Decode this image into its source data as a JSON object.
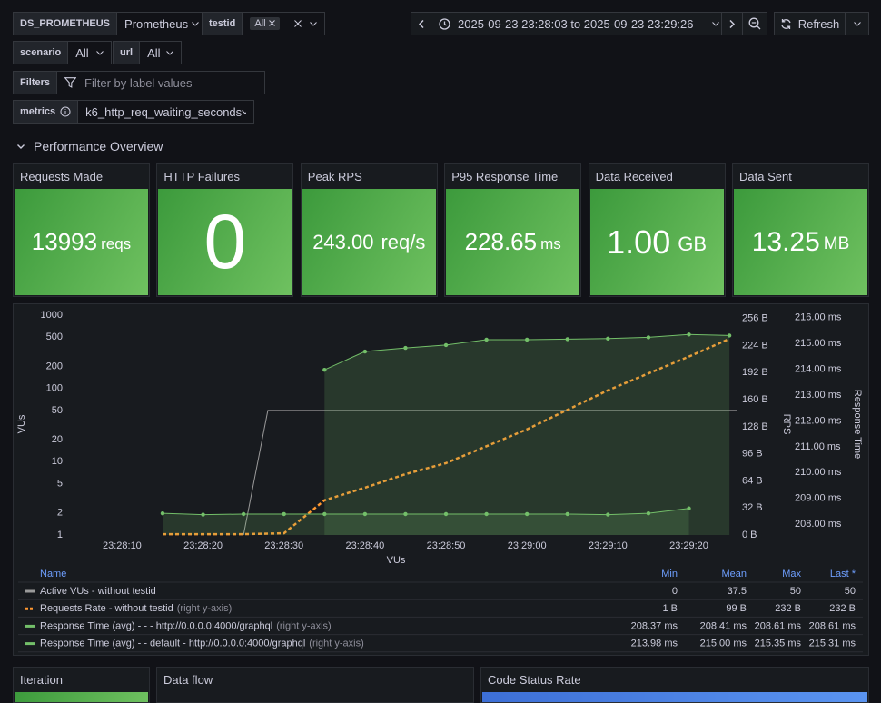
{
  "variables": [
    {
      "label": "DS_PROMETHEUS",
      "value": "Prometheus"
    },
    {
      "label": "testid",
      "value": "All"
    },
    {
      "label": "scenario",
      "value": "All"
    },
    {
      "label": "url",
      "value": "All"
    },
    {
      "label": "Filters",
      "placeholder": "Filter by label values"
    },
    {
      "label": "metrics",
      "value": "k6_http_req_waiting_seconds"
    }
  ],
  "time_range": "2025-09-23 23:28:03 to 2025-09-23 23:29:26",
  "refresh": "Refresh",
  "row_title": "Performance Overview",
  "stats": [
    {
      "title": "Requests Made",
      "value": "13993",
      "unit": "reqs"
    },
    {
      "title": "HTTP Failures",
      "value": "0"
    },
    {
      "title": "Peak RPS",
      "value": "243.00",
      "unit": "req/s"
    },
    {
      "title": "P95 Response Time",
      "value": "228.65",
      "unit": "ms"
    },
    {
      "title": "Data Received",
      "value": "1.00",
      "unit": "GB"
    },
    {
      "title": "Data Sent",
      "value": "13.25",
      "unit": "MB"
    }
  ],
  "chart_data": {
    "type": "line",
    "xlabel": "VUs",
    "ylabel": "VUs",
    "y2label": "RPS",
    "y3label": "Response Time",
    "xlim": [
      "23:28:03",
      "23:29:26"
    ],
    "xticks": [
      "23:28:10",
      "23:28:20",
      "23:28:30",
      "23:28:40",
      "23:28:50",
      "23:29:00",
      "23:29:10",
      "23:29:20"
    ],
    "ylog": true,
    "ylim": [
      1,
      1000
    ],
    "yticks": [
      1,
      2,
      5,
      10,
      20,
      50,
      100,
      200,
      500,
      1000
    ],
    "y2lim": [
      0,
      260
    ],
    "y2ticks": [
      {
        "value": 0,
        "label": "0 B"
      },
      {
        "value": 32,
        "label": "32 B"
      },
      {
        "value": 64,
        "label": "64 B"
      },
      {
        "value": 96,
        "label": "96 B"
      },
      {
        "value": 128,
        "label": "128 B"
      },
      {
        "value": 160,
        "label": "160 B"
      },
      {
        "value": 192,
        "label": "192 B"
      },
      {
        "value": 224,
        "label": "224 B"
      },
      {
        "value": 256,
        "label": "256 B"
      }
    ],
    "y3lim": [
      207.58,
      216.1
    ],
    "y3ticks": [
      {
        "value": 208,
        "label": "208.00 ms"
      },
      {
        "value": 209,
        "label": "209.00 ms"
      },
      {
        "value": 210,
        "label": "210.00 ms"
      },
      {
        "value": 211,
        "label": "211.00 ms"
      },
      {
        "value": 212,
        "label": "212.00 ms"
      },
      {
        "value": 213,
        "label": "213.00 ms"
      },
      {
        "value": 214,
        "label": "214.00 ms"
      },
      {
        "value": 215,
        "label": "215.00 ms"
      },
      {
        "value": 216,
        "label": "216.00 ms"
      }
    ],
    "legend_header": [
      "Name",
      "Min",
      "Mean",
      "Max",
      "Last *"
    ],
    "series": [
      {
        "name": "Active VUs - without testid",
        "color": "#9a9a9a",
        "axis": "y",
        "x": [
          "23:28:25",
          "23:28:28",
          "23:29:26"
        ],
        "values": [
          1,
          50,
          50
        ],
        "min": "0",
        "mean": "37.5",
        "max": "50",
        "last": "50"
      },
      {
        "name": "Requests Rate - without testid",
        "note": "(right y-axis)",
        "color": "#ff9830",
        "axis": "y2",
        "dashed": true,
        "x": [
          "23:28:15",
          "23:28:20",
          "23:28:25",
          "23:28:30",
          "23:28:35",
          "23:28:40",
          "23:28:45",
          "23:28:50",
          "23:28:55",
          "23:29:00",
          "23:29:05",
          "23:29:10",
          "23:29:15",
          "23:29:20",
          "23:29:25"
        ],
        "values": [
          1,
          1,
          1,
          2,
          41,
          56,
          72,
          85,
          105,
          125,
          148,
          171,
          191,
          211,
          232
        ],
        "min": "1 B",
        "mean": "99 B",
        "max": "232 B",
        "last": "232 B"
      },
      {
        "name": "Response Time (avg) - - - http://0.0.0.0:4000/graphql",
        "note": "(right y-axis)",
        "color": "#73bf69",
        "axis": "y3",
        "points": true,
        "fill": true,
        "x": [
          "23:28:15",
          "23:28:20",
          "23:28:25",
          "23:28:30",
          "23:28:35",
          "23:28:40",
          "23:28:45",
          "23:28:50",
          "23:28:55",
          "23:29:00",
          "23:29:05",
          "23:29:10",
          "23:29:15",
          "23:29:20"
        ],
        "values": [
          208.42,
          208.37,
          208.39,
          208.39,
          208.39,
          208.39,
          208.39,
          208.39,
          208.39,
          208.39,
          208.39,
          208.37,
          208.42,
          208.61
        ],
        "min": "208.37 ms",
        "mean": "208.41 ms",
        "max": "208.61 ms",
        "last": "208.61 ms"
      },
      {
        "name": "Response Time (avg) - - default - http://0.0.0.0:4000/graphql",
        "note": "(right y-axis)",
        "color": "#73bf69",
        "axis": "y3",
        "points": true,
        "fill": true,
        "x": [
          "23:28:35",
          "23:28:40",
          "23:28:45",
          "23:28:50",
          "23:28:55",
          "23:29:00",
          "23:29:05",
          "23:29:10",
          "23:29:15",
          "23:29:20",
          "23:29:25"
        ],
        "values": [
          213.98,
          214.69,
          214.83,
          214.94,
          215.15,
          215.15,
          215.17,
          215.19,
          215.24,
          215.35,
          215.31
        ],
        "min": "213.98 ms",
        "mean": "215.00 ms",
        "max": "215.35 ms",
        "last": "215.31 ms"
      }
    ]
  },
  "bottom_panels": [
    "Iteration",
    "Data flow",
    "Code Status Rate"
  ]
}
